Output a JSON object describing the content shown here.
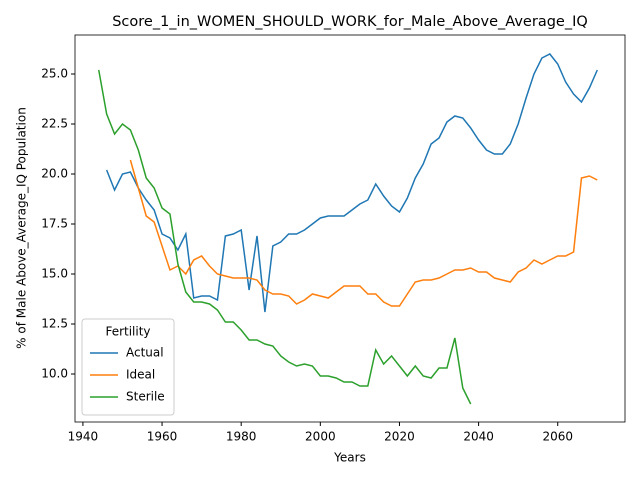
{
  "chart_data": {
    "type": "line",
    "title": "Score_1_in_WOMEN_SHOULD_WORK_for_Male_Above_Average_IQ",
    "xlabel": "Years",
    "ylabel": "% of Male Above_Average_IQ Population",
    "legend_title": "Fertility",
    "legend": "lower left",
    "x": [
      1944,
      1946,
      1948,
      1950,
      1952,
      1954,
      1956,
      1958,
      1960,
      1962,
      1964,
      1966,
      1968,
      1970,
      1972,
      1974,
      1976,
      1978,
      1980,
      1982,
      1984,
      1986,
      1988,
      1990,
      1992,
      1994,
      1996,
      1998,
      2000,
      2002,
      2004,
      2006,
      2008,
      2010,
      2012,
      2014,
      2016,
      2018,
      2020,
      2022,
      2024,
      2026,
      2028,
      2030,
      2032,
      2034,
      2036,
      2038,
      2040,
      2042,
      2044,
      2046,
      2048,
      2050,
      2052,
      2054,
      2056,
      2058,
      2060,
      2062,
      2064,
      2066,
      2068,
      2070
    ],
    "series": [
      {
        "name": "Actual",
        "color": "#1f77b4",
        "values": [
          null,
          20.2,
          19.2,
          20.0,
          20.1,
          19.3,
          18.7,
          18.2,
          17.0,
          16.8,
          16.2,
          17.0,
          13.8,
          13.9,
          13.9,
          13.7,
          16.9,
          17.0,
          17.2,
          14.2,
          16.9,
          13.1,
          16.4,
          16.6,
          17.0,
          17.0,
          17.2,
          17.5,
          17.8,
          17.9,
          17.9,
          17.9,
          18.2,
          18.5,
          18.7,
          19.5,
          18.9,
          18.4,
          18.1,
          18.8,
          19.8,
          20.5,
          21.5,
          21.8,
          22.6,
          22.9,
          22.8,
          22.3,
          21.7,
          21.2,
          21.0,
          21.0,
          21.5,
          22.5,
          23.8,
          25.0,
          25.8,
          26.0,
          25.5,
          24.6,
          24.0,
          23.6,
          24.3,
          25.2
        ]
      },
      {
        "name": "Ideal",
        "color": "#ff7f0e",
        "values": [
          null,
          null,
          null,
          null,
          20.7,
          19.3,
          17.9,
          17.6,
          16.4,
          15.2,
          15.4,
          15.0,
          15.7,
          15.9,
          15.4,
          15.0,
          14.9,
          14.8,
          14.8,
          14.8,
          14.7,
          14.2,
          14.0,
          14.0,
          13.9,
          13.5,
          13.7,
          14.0,
          13.9,
          13.8,
          14.1,
          14.4,
          14.4,
          14.4,
          14.0,
          14.0,
          13.6,
          13.4,
          13.4,
          14.0,
          14.6,
          14.7,
          14.7,
          14.8,
          15.0,
          15.2,
          15.2,
          15.3,
          15.1,
          15.1,
          14.8,
          14.7,
          14.6,
          15.1,
          15.3,
          15.7,
          15.5,
          15.7,
          15.9,
          15.9,
          16.1,
          19.8,
          19.9,
          19.7
        ]
      },
      {
        "name": "Sterile",
        "color": "#2ca02c",
        "values": [
          25.2,
          23.0,
          22.0,
          22.5,
          22.2,
          21.2,
          19.8,
          19.3,
          18.3,
          18.0,
          15.5,
          14.1,
          13.6,
          13.6,
          13.5,
          13.2,
          12.6,
          12.6,
          12.2,
          11.7,
          11.7,
          11.5,
          11.4,
          10.9,
          10.6,
          10.4,
          10.5,
          10.4,
          9.9,
          9.9,
          9.8,
          9.6,
          9.6,
          9.4,
          9.4,
          11.2,
          10.5,
          10.9,
          10.4,
          9.9,
          10.4,
          9.9,
          9.8,
          10.3,
          10.3,
          11.8,
          9.3,
          8.5,
          null,
          null,
          null,
          null,
          null,
          null,
          null,
          null,
          null,
          null,
          null,
          null,
          null,
          null,
          null,
          null
        ]
      }
    ],
    "xlim": [
      1938,
      2077
    ],
    "ylim": [
      7.6,
      26.95
    ],
    "xticks": [
      1940,
      1960,
      1980,
      2000,
      2020,
      2040,
      2060
    ],
    "yticks": [
      {
        "value": 10,
        "label": "10.0"
      },
      12.5,
      {
        "value": 15,
        "label": "15.0"
      },
      17.5,
      {
        "value": 20,
        "label": "20.0"
      },
      22.5,
      {
        "value": 25,
        "label": "25.0"
      }
    ]
  }
}
